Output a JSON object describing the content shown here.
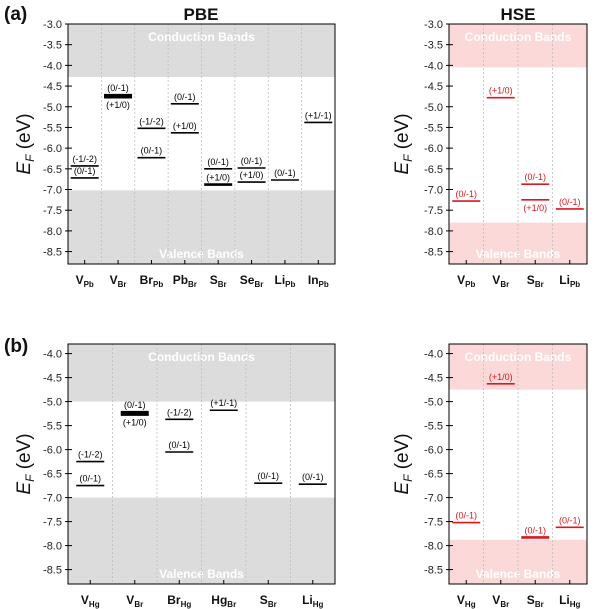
{
  "figure": {
    "tags": {
      "a": "(a)",
      "b": "(b)"
    },
    "ylabel_main": "E",
    "ylabel_sub": "F",
    "ylabel_unit": " (eV)",
    "conduction_label": "Conduction Bands",
    "valence_label": "Valence Bands",
    "colors": {
      "pbe_band": "#dcdcdc",
      "hse_band": "#fbd9d9",
      "pbe_level": "#000000",
      "hse_level": "#d71920",
      "divider": "#bdbdbd"
    }
  },
  "chart_data": [
    {
      "id": "a-pbe",
      "type": "table",
      "title": "PBE",
      "ylim": [
        -8.8,
        -3.0
      ],
      "yticks": [
        -3.0,
        -3.5,
        -4.0,
        -4.5,
        -5.0,
        -5.5,
        -6.0,
        -6.5,
        -7.0,
        -7.5,
        -8.0,
        -8.5
      ],
      "ytick_labels": [
        "-3.0",
        "-3.5",
        "-4.0",
        "-4.5",
        "-5.0",
        "-5.5",
        "-6.0",
        "-6.5",
        "-7.0",
        "-7.5",
        "-8.0",
        "-8.5"
      ],
      "cbm": -4.28,
      "vbm": -7.02,
      "categories": [
        {
          "main": "V",
          "sub": "Pb"
        },
        {
          "main": "V",
          "sub": "Br"
        },
        {
          "main": "Br",
          "sub": "Pb"
        },
        {
          "main": "Pb",
          "sub": "Br"
        },
        {
          "main": "S",
          "sub": "Br"
        },
        {
          "main": "Se",
          "sub": "Br"
        },
        {
          "main": "Li",
          "sub": "Pb"
        },
        {
          "main": "In",
          "sub": "Pb"
        }
      ],
      "levels": [
        {
          "cat": 0,
          "y": -6.43,
          "label": "(-1/-2)",
          "pos": "above"
        },
        {
          "cat": 0,
          "y": -6.72,
          "label": "(0/-1)",
          "pos": "above"
        },
        {
          "cat": 1,
          "y": -4.72,
          "label": "(0/-1)",
          "pos": "above",
          "bold": true
        },
        {
          "cat": 1,
          "y": -4.77,
          "label": "(+1/0)",
          "pos": "below",
          "bold": true
        },
        {
          "cat": 2,
          "y": -5.52,
          "label": "(-1/-2)",
          "pos": "above"
        },
        {
          "cat": 2,
          "y": -6.23,
          "label": "(0/-1)",
          "pos": "above"
        },
        {
          "cat": 3,
          "y": -4.93,
          "label": "(0/-1)",
          "pos": "above"
        },
        {
          "cat": 3,
          "y": -5.63,
          "label": "(+1/0)",
          "pos": "above"
        },
        {
          "cat": 4,
          "y": -6.5,
          "label": "(0/-1)",
          "pos": "above"
        },
        {
          "cat": 4,
          "y": -6.88,
          "label": "(+1/0)",
          "pos": "above",
          "bold": true
        },
        {
          "cat": 5,
          "y": -6.48,
          "label": "(0/-1)",
          "pos": "above"
        },
        {
          "cat": 5,
          "y": -6.82,
          "label": "(+1/0)",
          "pos": "above"
        },
        {
          "cat": 6,
          "y": -6.77,
          "label": "(0/-1)",
          "pos": "above"
        },
        {
          "cat": 7,
          "y": -5.38,
          "label": "(+1/-1)",
          "pos": "above"
        }
      ]
    },
    {
      "id": "a-hse",
      "type": "table",
      "title": "HSE",
      "ylim": [
        -8.8,
        -3.0
      ],
      "yticks": [
        -3.0,
        -3.5,
        -4.0,
        -4.5,
        -5.0,
        -5.5,
        -6.0,
        -6.5,
        -7.0,
        -7.5,
        -8.0,
        -8.5
      ],
      "ytick_labels": [
        "-3.0",
        "-3.5",
        "-4.0",
        "-4.5",
        "-5.0",
        "-5.5",
        "-6.0",
        "-6.5",
        "-7.0",
        "-7.5",
        "-8.0",
        "-8.5"
      ],
      "cbm": -4.05,
      "vbm": -7.8,
      "categories": [
        {
          "main": "V",
          "sub": "Pb"
        },
        {
          "main": "V",
          "sub": "Br"
        },
        {
          "main": "S",
          "sub": "Br"
        },
        {
          "main": "Li",
          "sub": "Pb"
        }
      ],
      "levels": [
        {
          "cat": 0,
          "y": -7.28,
          "label": "(0/-1)",
          "pos": "above"
        },
        {
          "cat": 1,
          "y": -4.78,
          "label": "(+1/0)",
          "pos": "above"
        },
        {
          "cat": 2,
          "y": -6.87,
          "label": "(0/-1)",
          "pos": "above"
        },
        {
          "cat": 2,
          "y": -7.25,
          "label": "(+1/0)",
          "pos": "below"
        },
        {
          "cat": 3,
          "y": -7.47,
          "label": "(0/-1)",
          "pos": "above"
        }
      ]
    },
    {
      "id": "b-pbe",
      "type": "table",
      "title": "",
      "ylim": [
        -8.8,
        -3.8
      ],
      "yticks": [
        -4.0,
        -4.5,
        -5.0,
        -5.5,
        -6.0,
        -6.5,
        -7.0,
        -7.5,
        -8.0,
        -8.5
      ],
      "ytick_labels": [
        "-4.0",
        "-4.5",
        "-5.0",
        "-5.5",
        "-6.0",
        "-6.5",
        "-7.0",
        "-7.5",
        "-8.0",
        "-8.5"
      ],
      "cbm": -5.0,
      "vbm": -7.0,
      "categories": [
        {
          "main": "V",
          "sub": "Hg"
        },
        {
          "main": "V",
          "sub": "Br"
        },
        {
          "main": "Br",
          "sub": "Hg"
        },
        {
          "main": "Hg",
          "sub": "Br"
        },
        {
          "main": "S",
          "sub": "Br"
        },
        {
          "main": "Li",
          "sub": "Hg"
        }
      ],
      "levels": [
        {
          "cat": 0,
          "y": -6.25,
          "label": "(-1/-2)",
          "pos": "above"
        },
        {
          "cat": 0,
          "y": -6.75,
          "label": "(0/-1)",
          "pos": "above"
        },
        {
          "cat": 1,
          "y": -5.22,
          "label": "(0/-1)",
          "pos": "above",
          "bold": true
        },
        {
          "cat": 1,
          "y": -5.27,
          "label": "(+1/0)",
          "pos": "below",
          "bold": true
        },
        {
          "cat": 2,
          "y": -5.37,
          "label": "(-1/-2)",
          "pos": "above"
        },
        {
          "cat": 2,
          "y": -6.05,
          "label": "(0/-1)",
          "pos": "above"
        },
        {
          "cat": 3,
          "y": -5.18,
          "label": "(+1/-1)",
          "pos": "above"
        },
        {
          "cat": 4,
          "y": -6.7,
          "label": "(0/-1)",
          "pos": "above"
        },
        {
          "cat": 5,
          "y": -6.72,
          "label": "(0/-1)",
          "pos": "above"
        }
      ]
    },
    {
      "id": "b-hse",
      "type": "table",
      "title": "",
      "ylim": [
        -8.8,
        -3.8
      ],
      "yticks": [
        -4.0,
        -4.5,
        -5.0,
        -5.5,
        -6.0,
        -6.5,
        -7.0,
        -7.5,
        -8.0,
        -8.5
      ],
      "ytick_labels": [
        "-4.0",
        "-4.5",
        "-5.0",
        "-5.5",
        "-6.0",
        "-6.5",
        "-7.0",
        "-7.5",
        "-8.0",
        "-8.5"
      ],
      "cbm": -4.75,
      "vbm": -7.88,
      "categories": [
        {
          "main": "V",
          "sub": "Hg"
        },
        {
          "main": "V",
          "sub": "Br"
        },
        {
          "main": "S",
          "sub": "Br"
        },
        {
          "main": "Li",
          "sub": "Hg"
        }
      ],
      "levels": [
        {
          "cat": 0,
          "y": -7.52,
          "label": "(0/-1)",
          "pos": "above"
        },
        {
          "cat": 1,
          "y": -4.63,
          "label": "(+1/0)",
          "pos": "above"
        },
        {
          "cat": 2,
          "y": -7.83,
          "label": "(0/-1)",
          "pos": "above",
          "bold": true
        },
        {
          "cat": 3,
          "y": -7.62,
          "label": "(0/-1)",
          "pos": "above"
        }
      ]
    }
  ]
}
